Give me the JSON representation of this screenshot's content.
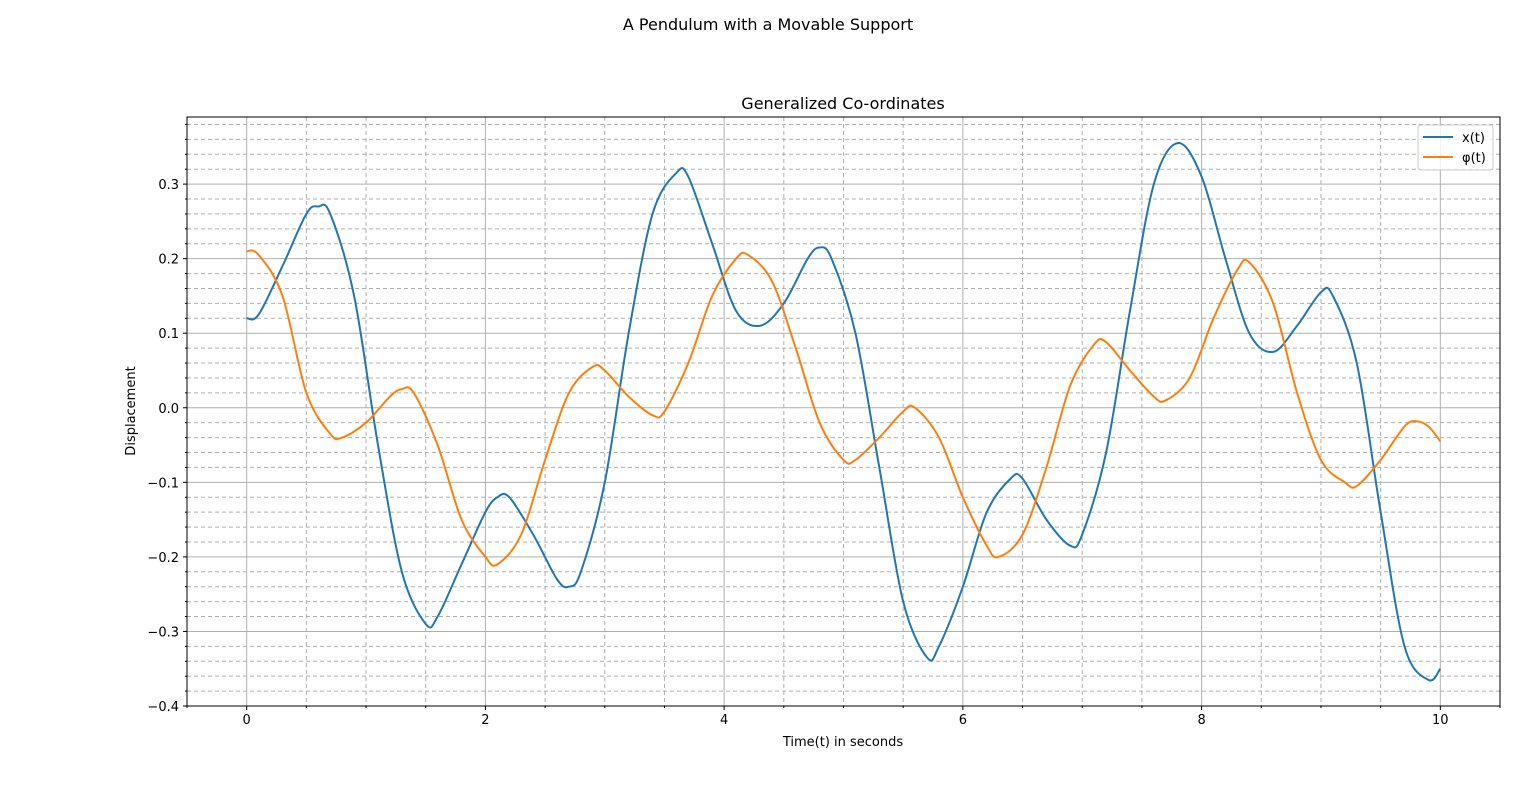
{
  "suptitle": "A Pendulum with a Movable Support",
  "chart_data": {
    "type": "line",
    "title": "Generalized Co-ordinates",
    "xlabel": "Time(t) in seconds",
    "ylabel": "Displacement",
    "xlim": [
      -0.5,
      10.5
    ],
    "ylim": [
      -0.4,
      0.39
    ],
    "x_ticks": [
      0,
      2,
      4,
      6,
      8,
      10
    ],
    "y_ticks": [
      -0.4,
      -0.3,
      -0.2,
      -0.1,
      0.0,
      0.1,
      0.2,
      0.3
    ],
    "x_tick_labels": [
      "0",
      "2",
      "4",
      "6",
      "8",
      "10"
    ],
    "y_tick_labels": [
      "−0.4",
      "−0.3",
      "−0.2",
      "−0.1",
      "0.0",
      "0.1",
      "0.2",
      "0.3"
    ],
    "x_minor_step": 0.5,
    "y_minor_step": 0.02,
    "grid": "major and minor (minor dashed)",
    "legend_position": "top-right",
    "series": [
      {
        "name": "x(t)",
        "color": "#1f77b4",
        "points": [
          [
            0.0,
            0.12
          ],
          [
            0.1,
            0.125
          ],
          [
            0.3,
            0.19
          ],
          [
            0.5,
            0.26
          ],
          [
            0.6,
            0.27
          ],
          [
            0.7,
            0.26
          ],
          [
            0.9,
            0.15
          ],
          [
            1.1,
            -0.05
          ],
          [
            1.3,
            -0.22
          ],
          [
            1.5,
            -0.29
          ],
          [
            1.6,
            -0.28
          ],
          [
            1.8,
            -0.21
          ],
          [
            2.0,
            -0.14
          ],
          [
            2.1,
            -0.12
          ],
          [
            2.2,
            -0.12
          ],
          [
            2.4,
            -0.17
          ],
          [
            2.6,
            -0.23
          ],
          [
            2.7,
            -0.24
          ],
          [
            2.8,
            -0.22
          ],
          [
            3.0,
            -0.1
          ],
          [
            3.2,
            0.1
          ],
          [
            3.4,
            0.26
          ],
          [
            3.6,
            0.315
          ],
          [
            3.7,
            0.31
          ],
          [
            3.9,
            0.22
          ],
          [
            4.1,
            0.13
          ],
          [
            4.3,
            0.11
          ],
          [
            4.5,
            0.14
          ],
          [
            4.7,
            0.2
          ],
          [
            4.8,
            0.215
          ],
          [
            4.9,
            0.2
          ],
          [
            5.1,
            0.1
          ],
          [
            5.3,
            -0.08
          ],
          [
            5.5,
            -0.26
          ],
          [
            5.7,
            -0.335
          ],
          [
            5.8,
            -0.32
          ],
          [
            6.0,
            -0.24
          ],
          [
            6.2,
            -0.14
          ],
          [
            6.4,
            -0.095
          ],
          [
            6.5,
            -0.095
          ],
          [
            6.7,
            -0.15
          ],
          [
            6.9,
            -0.185
          ],
          [
            7.0,
            -0.17
          ],
          [
            7.2,
            -0.06
          ],
          [
            7.4,
            0.13
          ],
          [
            7.6,
            0.3
          ],
          [
            7.8,
            0.355
          ],
          [
            8.0,
            0.31
          ],
          [
            8.2,
            0.2
          ],
          [
            8.4,
            0.1
          ],
          [
            8.6,
            0.075
          ],
          [
            8.8,
            0.11
          ],
          [
            9.0,
            0.155
          ],
          [
            9.1,
            0.15
          ],
          [
            9.3,
            0.06
          ],
          [
            9.5,
            -0.14
          ],
          [
            9.7,
            -0.32
          ],
          [
            9.9,
            -0.365
          ],
          [
            10.0,
            -0.35
          ]
        ]
      },
      {
        "name": "φ(t)",
        "color": "#ff7f0e",
        "points": [
          [
            0.0,
            0.21
          ],
          [
            0.1,
            0.205
          ],
          [
            0.3,
            0.15
          ],
          [
            0.5,
            0.02
          ],
          [
            0.7,
            -0.035
          ],
          [
            0.8,
            -0.04
          ],
          [
            1.0,
            -0.02
          ],
          [
            1.2,
            0.015
          ],
          [
            1.3,
            0.025
          ],
          [
            1.4,
            0.02
          ],
          [
            1.6,
            -0.05
          ],
          [
            1.8,
            -0.15
          ],
          [
            2.0,
            -0.2
          ],
          [
            2.1,
            -0.21
          ],
          [
            2.3,
            -0.17
          ],
          [
            2.5,
            -0.07
          ],
          [
            2.7,
            0.02
          ],
          [
            2.9,
            0.055
          ],
          [
            3.0,
            0.05
          ],
          [
            3.2,
            0.015
          ],
          [
            3.4,
            -0.01
          ],
          [
            3.5,
            -0.005
          ],
          [
            3.7,
            0.06
          ],
          [
            3.9,
            0.15
          ],
          [
            4.1,
            0.2
          ],
          [
            4.2,
            0.205
          ],
          [
            4.4,
            0.17
          ],
          [
            4.6,
            0.08
          ],
          [
            4.8,
            -0.02
          ],
          [
            5.0,
            -0.07
          ],
          [
            5.1,
            -0.07
          ],
          [
            5.3,
            -0.04
          ],
          [
            5.5,
            -0.005
          ],
          [
            5.6,
            0.0
          ],
          [
            5.8,
            -0.04
          ],
          [
            6.0,
            -0.12
          ],
          [
            6.2,
            -0.185
          ],
          [
            6.3,
            -0.2
          ],
          [
            6.5,
            -0.17
          ],
          [
            6.7,
            -0.08
          ],
          [
            6.9,
            0.03
          ],
          [
            7.1,
            0.085
          ],
          [
            7.2,
            0.088
          ],
          [
            7.4,
            0.05
          ],
          [
            7.6,
            0.015
          ],
          [
            7.7,
            0.01
          ],
          [
            7.9,
            0.04
          ],
          [
            8.1,
            0.12
          ],
          [
            8.3,
            0.185
          ],
          [
            8.4,
            0.195
          ],
          [
            8.6,
            0.14
          ],
          [
            8.8,
            0.02
          ],
          [
            9.0,
            -0.07
          ],
          [
            9.2,
            -0.1
          ],
          [
            9.3,
            -0.105
          ],
          [
            9.5,
            -0.07
          ],
          [
            9.7,
            -0.025
          ],
          [
            9.8,
            -0.018
          ],
          [
            9.9,
            -0.025
          ],
          [
            10.0,
            -0.045
          ]
        ]
      }
    ]
  }
}
